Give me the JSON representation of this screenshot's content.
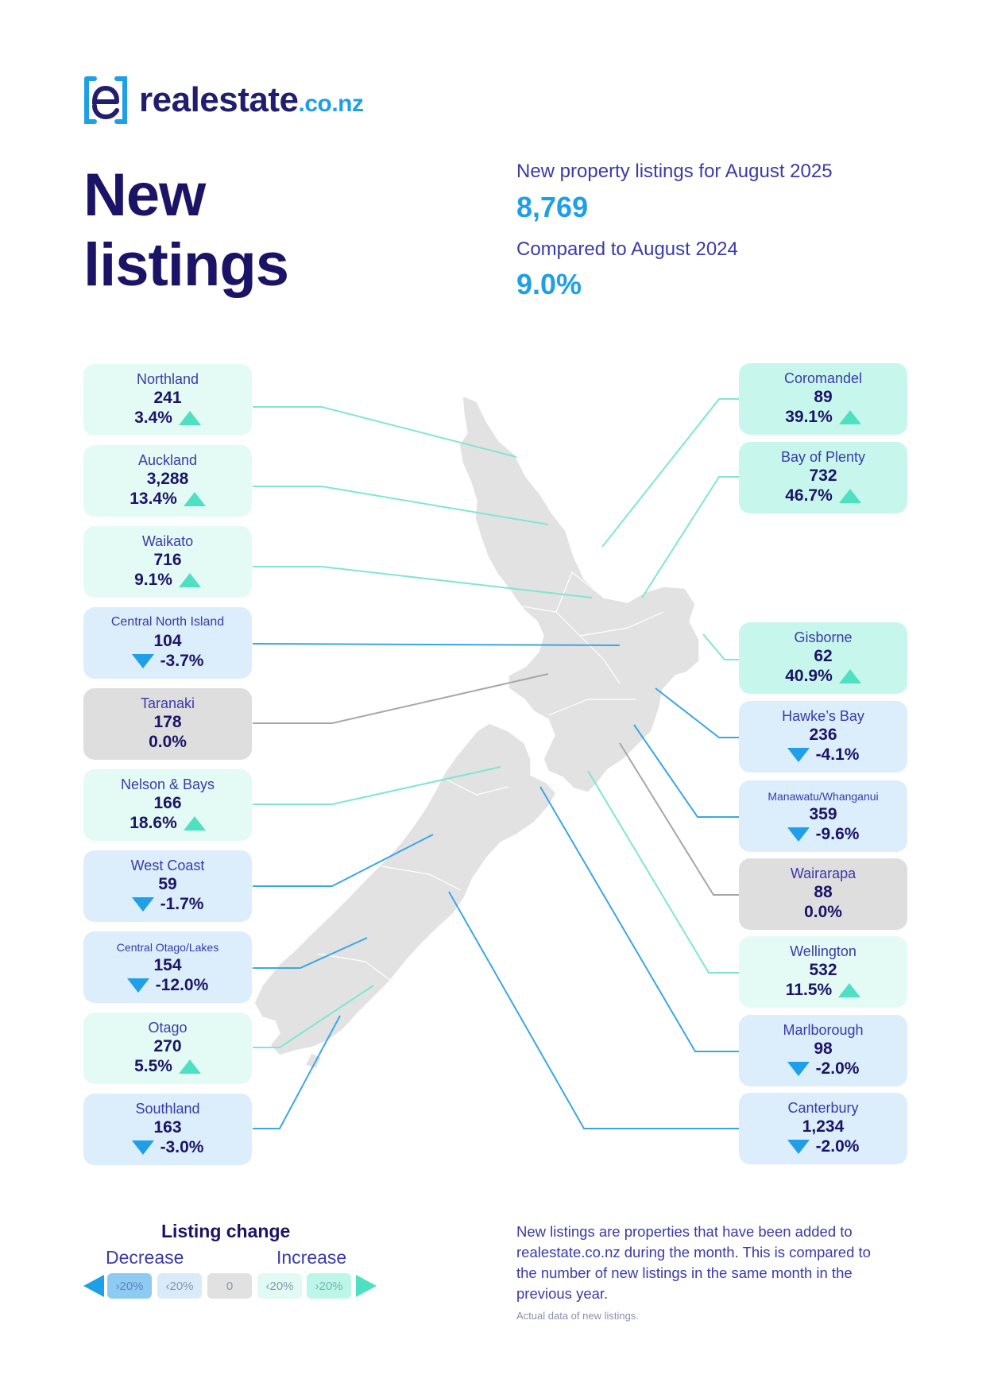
{
  "logo": {
    "text": "realestate",
    "suffix": ".co.nz",
    "icon": "realestate-logo-icon"
  },
  "title": "New listings",
  "summary": {
    "label1": "New property listings for August 2025",
    "value1": "8,769",
    "label2": "Compared to August 2024",
    "value2": "9.0%"
  },
  "colors": {
    "navy": "#1b1466",
    "blue_text": "#3b3aa8",
    "accent_blue": "#1f9fe7",
    "increase_arrow": "#4fe0c2",
    "decrease_arrow": "#1f9fe7",
    "card_increase_high": "#c7f7ec",
    "card_increase_low": "#e4fbf5",
    "card_decrease_low": "#dcedfc",
    "card_neutral": "#dedede",
    "map_land": "#e2e2e2"
  },
  "regions_left": [
    {
      "name": "Northland",
      "value": "241",
      "change": "3.4%",
      "direction": "up",
      "tier": "inc-lo"
    },
    {
      "name": "Auckland",
      "value": "3,288",
      "change": "13.4%",
      "direction": "up",
      "tier": "inc-lo"
    },
    {
      "name": "Waikato",
      "value": "716",
      "change": "9.1%",
      "direction": "up",
      "tier": "inc-lo"
    },
    {
      "name": "Central North Island",
      "value": "104",
      "change": "-3.7%",
      "direction": "down",
      "tier": "dec-lo"
    },
    {
      "name": "Taranaki",
      "value": "178",
      "change": "0.0%",
      "direction": "none",
      "tier": "neutral"
    },
    {
      "name": "Nelson & Bays",
      "value": "166",
      "change": "18.6%",
      "direction": "up",
      "tier": "inc-lo"
    },
    {
      "name": "West Coast",
      "value": "59",
      "change": "-1.7%",
      "direction": "down",
      "tier": "dec-lo"
    },
    {
      "name": "Central Otago/Lakes",
      "value": "154",
      "change": "-12.0%",
      "direction": "down",
      "tier": "dec-lo"
    },
    {
      "name": "Otago",
      "value": "270",
      "change": "5.5%",
      "direction": "up",
      "tier": "inc-lo"
    },
    {
      "name": "Southland",
      "value": "163",
      "change": "-3.0%",
      "direction": "down",
      "tier": "dec-lo"
    }
  ],
  "regions_right": [
    {
      "name": "Coromandel",
      "value": "89",
      "change": "39.1%",
      "direction": "up",
      "tier": "inc-hi"
    },
    {
      "name": "Bay of Plenty",
      "value": "732",
      "change": "46.7%",
      "direction": "up",
      "tier": "inc-hi"
    },
    {
      "name": "Gisborne",
      "value": "62",
      "change": "40.9%",
      "direction": "up",
      "tier": "inc-hi"
    },
    {
      "name": "Hawke’s Bay",
      "value": "236",
      "change": "-4.1%",
      "direction": "down",
      "tier": "dec-lo"
    },
    {
      "name": "Manawatu/Whanganui",
      "value": "359",
      "change": "-9.6%",
      "direction": "down",
      "tier": "dec-lo"
    },
    {
      "name": "Wairarapa",
      "value": "88",
      "change": "0.0%",
      "direction": "none",
      "tier": "neutral"
    },
    {
      "name": "Wellington",
      "value": "532",
      "change": "11.5%",
      "direction": "up",
      "tier": "inc-lo"
    },
    {
      "name": "Marlborough",
      "value": "98",
      "change": "-2.0%",
      "direction": "down",
      "tier": "dec-lo"
    },
    {
      "name": "Canterbury",
      "value": "1,234",
      "change": "-2.0%",
      "direction": "down",
      "tier": "dec-lo"
    }
  ],
  "legend": {
    "title": "Listing change",
    "decrease": "Decrease",
    "increase": "Increase",
    "boxes": [
      "›20%",
      "‹20%",
      "0",
      "‹20%",
      "›20%"
    ]
  },
  "footnote": {
    "text": "New listings are properties that have been added to realestate.co.nz during the month. This is compared to the number of new listings in the same month in the previous year.",
    "small": "Actual data of new listings."
  }
}
